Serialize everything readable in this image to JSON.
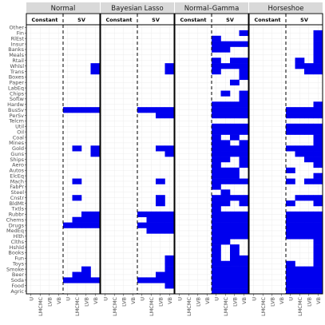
{
  "chart_data": {
    "type": "heatmap",
    "panels": [
      "Normal",
      "Bayesian Lasso",
      "Normal–Gamma",
      "Horseshoe"
    ],
    "groups": [
      "Constant",
      "SV"
    ],
    "x_labels": [
      "U",
      "LMCMC",
      "LVB",
      "VB",
      "U",
      "LMCMC",
      "LVB",
      "VB"
    ],
    "y_labels": [
      "Other",
      "Fin",
      "RlEst",
      "Insur",
      "Banks",
      "Meals",
      "Rtail",
      "Whlsl",
      "Trans",
      "Boxes",
      "Paper",
      "LabEq",
      "Chips",
      "Softw",
      "Hardw",
      "BusSv",
      "PerSv",
      "Telcm",
      "Util",
      "Oil",
      "Coal",
      "Mines",
      "Gold",
      "Guns",
      "Ships",
      "Aero",
      "Autos",
      "ElcEq",
      "Mach",
      "FabPr",
      "Steel",
      "Cnstr",
      "BldMt",
      "Txtls",
      "Rubbr",
      "Chems",
      "Drugs",
      "MedEq",
      "Hlth",
      "Clths",
      "Hshld",
      "Books",
      "Fun",
      "Toys",
      "Smoke",
      "Beer",
      "Soda",
      "Food",
      "Agric"
    ],
    "fill_color": "#0000ee",
    "cells": {
      "Normal": {
        "VB": [
          "Whlsl",
          "Trans",
          "BusSv",
          "Gold",
          "Guns",
          "Rubbr",
          "Chems",
          "Drugs",
          "Soda"
        ],
        "LVB": [
          "BusSv",
          "Rubbr",
          "Chems",
          "Drugs",
          "Smoke",
          "Beer",
          "Soda"
        ],
        "LMCMC": [
          "BusSv",
          "Gold",
          "Cnstr",
          "Mach",
          "Chems",
          "Drugs",
          "Beer",
          "Soda"
        ],
        "U": [
          "BusSv",
          "Drugs",
          "Soda"
        ]
      },
      "Bayesian Lasso": {
        "VB": [
          "Whlsl",
          "Trans",
          "BusSv",
          "PerSv",
          "Gold",
          "Guns",
          "Rubbr",
          "Chems",
          "Drugs",
          "MedEq",
          "Fun",
          "Toys",
          "Smoke",
          "Beer",
          "Soda",
          "Food"
        ],
        "LVB": [
          "BusSv",
          "PerSv",
          "Gold",
          "Mach",
          "Cnstr",
          "BldMt",
          "Rubbr",
          "Chems",
          "Drugs",
          "MedEq",
          "Beer",
          "Soda"
        ],
        "LMCMC": [
          "BusSv",
          "Rubbr",
          "Chems",
          "Drugs",
          "MedEq",
          "Soda"
        ],
        "U": [
          "BusSv",
          "Rubbr",
          "Drugs",
          "Soda"
        ]
      },
      "Normal–Gamma": {
        "VB": [
          "Fin",
          "Insur",
          "Rtail",
          "Whlsl",
          "Trans",
          "Boxes",
          "Chips",
          "Softw",
          "Hardw",
          "BusSv",
          "PerSv",
          "Util",
          "Oil",
          "Mines",
          "Gold",
          "Guns",
          "Ships",
          "Aero",
          "Mach",
          "Cnstr",
          "BldMt",
          "Rubbr",
          "Chems",
          "Drugs",
          "MedEq",
          "Hlth",
          "Fun",
          "Toys",
          "Smoke",
          "Beer",
          "Soda",
          "Food",
          "Agric"
        ],
        "LVB": [
          "Insur",
          "Rtail",
          "Whlsl",
          "Paper",
          "Hardw",
          "BusSv",
          "PerSv",
          "Util",
          "Oil",
          "Coal",
          "Gold",
          "Guns",
          "Autos",
          "ElcEq",
          "Mach",
          "Cnstr",
          "Rubbr",
          "Chems",
          "Drugs",
          "MedEq",
          "Hlth",
          "Hshld",
          "Books",
          "Fun",
          "Toys",
          "Smoke",
          "Beer",
          "Soda",
          "Food",
          "Agric"
        ],
        "LMCMC": [
          "Insur",
          "Banks",
          "Whlsl",
          "Chips",
          "Hardw",
          "BusSv",
          "PerSv",
          "Util",
          "Oil",
          "Mines",
          "Gold",
          "Guns",
          "Ships",
          "Autos",
          "ElcEq",
          "Mach",
          "Steel",
          "Cnstr",
          "BldMt",
          "Rubbr",
          "Chems",
          "Drugs",
          "MedEq",
          "Hlth",
          "Clths",
          "Toys",
          "Smoke",
          "Beer",
          "Soda",
          "Food",
          "Agric"
        ],
        "U": [
          "RlEst",
          "Insur",
          "Banks",
          "Rtail",
          "Whlsl",
          "Trans",
          "Hardw",
          "BusSv",
          "PerSv",
          "Util",
          "Oil",
          "Coal",
          "Mines",
          "Gold",
          "Guns",
          "Ships",
          "Aero",
          "Autos",
          "ElcEq",
          "Mach",
          "FabPr",
          "Cnstr",
          "BldMt",
          "Txtls",
          "Rubbr",
          "Chems",
          "Drugs",
          "MedEq",
          "Hlth",
          "Clths",
          "Hshld",
          "Books",
          "Fun",
          "Toys",
          "Smoke",
          "Beer",
          "Soda",
          "Food",
          "Agric"
        ]
      },
      "Horseshoe": {
        "VB": [
          "Fin",
          "RlEst",
          "Insur",
          "Banks",
          "Meals",
          "Rtail",
          "Whlsl",
          "Trans",
          "Hardw",
          "BusSv",
          "PerSv",
          "Util",
          "Oil",
          "Coal",
          "Mines",
          "Gold",
          "Guns",
          "Ships",
          "Aero",
          "ElcEq",
          "Mach",
          "Cnstr",
          "BldMt",
          "Rubbr",
          "Chems",
          "Drugs",
          "MedEq",
          "Hlth",
          "Clths",
          "Hshld",
          "Books",
          "Fun",
          "Toys",
          "Smoke",
          "Beer",
          "Soda",
          "Food",
          "Agric"
        ],
        "LVB": [
          "Whlsl",
          "Trans",
          "BusSv",
          "PerSv",
          "Util",
          "Oil",
          "Gold",
          "Guns",
          "Ships",
          "Mach",
          "Cnstr",
          "Rubbr",
          "Chems",
          "Drugs",
          "MedEq",
          "Hlth",
          "Smoke",
          "Beer",
          "Soda",
          "Food",
          "Agric"
        ],
        "LMCMC": [
          "Rtail",
          "Whlsl",
          "BusSv",
          "PerSv",
          "Util",
          "Oil",
          "Gold",
          "Guns",
          "Cnstr",
          "Rubbr",
          "Chems",
          "Drugs",
          "MedEq",
          "Hlth",
          "Smoke",
          "Beer",
          "Soda",
          "Food",
          "Agric"
        ],
        "U": [
          "BusSv",
          "PerSv",
          "Util",
          "Oil",
          "Gold",
          "Autos",
          "Mach",
          "BldMt",
          "Rubbr",
          "Chems",
          "Drugs",
          "MedEq",
          "Hlth",
          "Toys",
          "Smoke",
          "Beer",
          "Soda",
          "Food",
          "Agric"
        ]
      }
    }
  }
}
